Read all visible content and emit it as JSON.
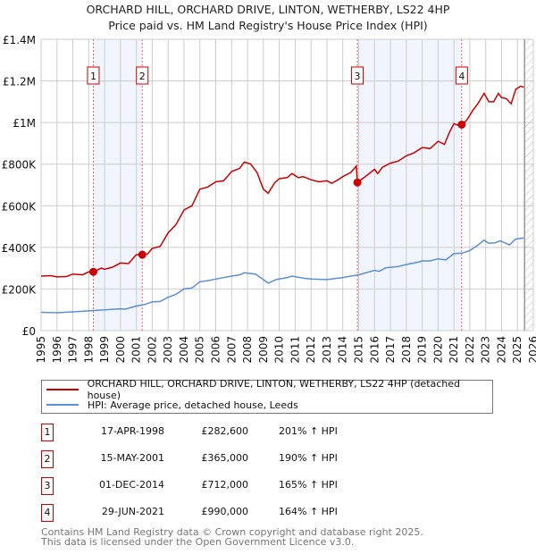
{
  "chart_data": {
    "type": "line",
    "title": "ORCHARD HILL, ORCHARD DRIVE, LINTON, WETHERBY, LS22 4HP",
    "subtitle": "Price paid vs. HM Land Registry's House Price Index (HPI)",
    "xlim": [
      1995,
      2026
    ],
    "ylim": [
      0,
      1400000
    ],
    "x_ticks": [
      1995,
      1996,
      1997,
      1998,
      1999,
      2000,
      2001,
      2002,
      2003,
      2004,
      2005,
      2006,
      2007,
      2008,
      2009,
      2010,
      2011,
      2012,
      2013,
      2014,
      2015,
      2016,
      2017,
      2018,
      2019,
      2020,
      2021,
      2022,
      2023,
      2024,
      2025,
      2026
    ],
    "y_ticks": [
      {
        "v": 0,
        "label": "£0"
      },
      {
        "v": 200000,
        "label": "£200K"
      },
      {
        "v": 400000,
        "label": "£400K"
      },
      {
        "v": 600000,
        "label": "£600K"
      },
      {
        "v": 800000,
        "label": "£800K"
      },
      {
        "v": 1000000,
        "label": "£1M"
      },
      {
        "v": 1200000,
        "label": "£1.2M"
      },
      {
        "v": 1400000,
        "label": "£1.4M"
      }
    ],
    "grid": true,
    "forecast_hatch_from": 2025.45,
    "series": [
      {
        "name": "ORCHARD HILL, ORCHARD DRIVE, LINTON, WETHERBY, LS22 4HP (detached house)",
        "color": "#cc0000",
        "points": [
          [
            1995,
            262
          ],
          [
            1995.6,
            264
          ],
          [
            1996,
            258
          ],
          [
            1996.6,
            260
          ],
          [
            1997,
            272
          ],
          [
            1997.6,
            268
          ],
          [
            1998,
            282
          ],
          [
            1998.3,
            282.6
          ],
          [
            1998.8,
            300
          ],
          [
            1999,
            295
          ],
          [
            1999.5,
            305
          ],
          [
            2000,
            325
          ],
          [
            2000.5,
            322
          ],
          [
            2001,
            365
          ],
          [
            2001.37,
            365
          ],
          [
            2001.7,
            368
          ],
          [
            2002,
            395
          ],
          [
            2002.5,
            405
          ],
          [
            2003,
            470
          ],
          [
            2003.5,
            510
          ],
          [
            2004,
            580
          ],
          [
            2004.5,
            600
          ],
          [
            2005,
            680
          ],
          [
            2005.5,
            690
          ],
          [
            2006,
            715
          ],
          [
            2006.5,
            720
          ],
          [
            2007,
            765
          ],
          [
            2007.5,
            780
          ],
          [
            2007.8,
            810
          ],
          [
            2008.2,
            800
          ],
          [
            2008.6,
            760
          ],
          [
            2009,
            680
          ],
          [
            2009.3,
            660
          ],
          [
            2009.7,
            710
          ],
          [
            2010,
            730
          ],
          [
            2010.5,
            735
          ],
          [
            2010.8,
            755
          ],
          [
            2011.2,
            735
          ],
          [
            2011.5,
            740
          ],
          [
            2012,
            725
          ],
          [
            2012.5,
            715
          ],
          [
            2013,
            720
          ],
          [
            2013.3,
            708
          ],
          [
            2013.7,
            725
          ],
          [
            2014,
            740
          ],
          [
            2014.5,
            760
          ],
          [
            2014.85,
            790
          ],
          [
            2014.92,
            712
          ],
          [
            2015.5,
            745
          ],
          [
            2016,
            775
          ],
          [
            2016.2,
            755
          ],
          [
            2016.5,
            785
          ],
          [
            2017,
            805
          ],
          [
            2017.5,
            815
          ],
          [
            2018,
            840
          ],
          [
            2018.5,
            855
          ],
          [
            2019,
            880
          ],
          [
            2019.5,
            875
          ],
          [
            2020,
            910
          ],
          [
            2020.4,
            895
          ],
          [
            2020.7,
            950
          ],
          [
            2021,
            995
          ],
          [
            2021.3,
            985
          ],
          [
            2021.49,
            990
          ],
          [
            2021.8,
            1010
          ],
          [
            2022.2,
            1060
          ],
          [
            2022.5,
            1090
          ],
          [
            2022.9,
            1140
          ],
          [
            2023.2,
            1100
          ],
          [
            2023.5,
            1100
          ],
          [
            2023.8,
            1140
          ],
          [
            2024,
            1120
          ],
          [
            2024.3,
            1115
          ],
          [
            2024.6,
            1090
          ],
          [
            2024.9,
            1160
          ],
          [
            2025.2,
            1175
          ],
          [
            2025.4,
            1170
          ]
        ]
      },
      {
        "name": "HPI: Average price, detached house, Leeds",
        "color": "#5b8fd6",
        "points": [
          [
            1995,
            88
          ],
          [
            1996,
            86
          ],
          [
            1997,
            90
          ],
          [
            1998,
            95
          ],
          [
            1999,
            100
          ],
          [
            2000,
            105
          ],
          [
            2000.3,
            103
          ],
          [
            2001,
            118
          ],
          [
            2001.5,
            125
          ],
          [
            2002,
            138
          ],
          [
            2002.5,
            140
          ],
          [
            2003,
            160
          ],
          [
            2003.5,
            175
          ],
          [
            2004,
            200
          ],
          [
            2004.5,
            205
          ],
          [
            2005,
            235
          ],
          [
            2005.5,
            240
          ],
          [
            2006,
            248
          ],
          [
            2007,
            262
          ],
          [
            2007.5,
            268
          ],
          [
            2007.8,
            278
          ],
          [
            2008.5,
            272
          ],
          [
            2009,
            245
          ],
          [
            2009.3,
            228
          ],
          [
            2009.8,
            245
          ],
          [
            2010.5,
            255
          ],
          [
            2010.8,
            262
          ],
          [
            2011.5,
            252
          ],
          [
            2012,
            248
          ],
          [
            2013,
            245
          ],
          [
            2014,
            255
          ],
          [
            2014.5,
            262
          ],
          [
            2015,
            268
          ],
          [
            2016,
            290
          ],
          [
            2016.3,
            285
          ],
          [
            2016.7,
            302
          ],
          [
            2017.5,
            308
          ],
          [
            2018,
            318
          ],
          [
            2018.7,
            328
          ],
          [
            2019,
            335
          ],
          [
            2019.5,
            335
          ],
          [
            2020,
            345
          ],
          [
            2020.5,
            340
          ],
          [
            2021,
            370
          ],
          [
            2021.5,
            372
          ],
          [
            2022,
            385
          ],
          [
            2022.5,
            410
          ],
          [
            2022.9,
            435
          ],
          [
            2023.2,
            420
          ],
          [
            2023.6,
            422
          ],
          [
            2023.9,
            432
          ],
          [
            2024.2,
            422
          ],
          [
            2024.5,
            412
          ],
          [
            2024.9,
            440
          ],
          [
            2025.4,
            445
          ]
        ]
      }
    ],
    "sales": [
      {
        "n": "1",
        "x": 1998.29,
        "value": 282600,
        "date": "17-APR-1998",
        "price": "£282,600",
        "pct": "201% ↑ HPI"
      },
      {
        "n": "2",
        "x": 2001.37,
        "value": 365000,
        "date": "15-MAY-2001",
        "price": "£365,000",
        "pct": "190% ↑ HPI"
      },
      {
        "n": "3",
        "x": 2014.92,
        "value": 712000,
        "date": "01-DEC-2014",
        "price": "£712,000",
        "pct": "165% ↑ HPI"
      },
      {
        "n": "4",
        "x": 2021.49,
        "value": 990000,
        "date": "29-JUN-2021",
        "price": "£990,000",
        "pct": "164% ↑ HPI"
      }
    ],
    "shaded": [
      [
        1998.29,
        2001.37
      ],
      [
        2014.92,
        2021.49
      ]
    ]
  },
  "footer": {
    "line1": "Contains HM Land Registry data © Crown copyright and database right 2025.",
    "line2": "This data is licensed under the Open Government Licence v3.0."
  }
}
